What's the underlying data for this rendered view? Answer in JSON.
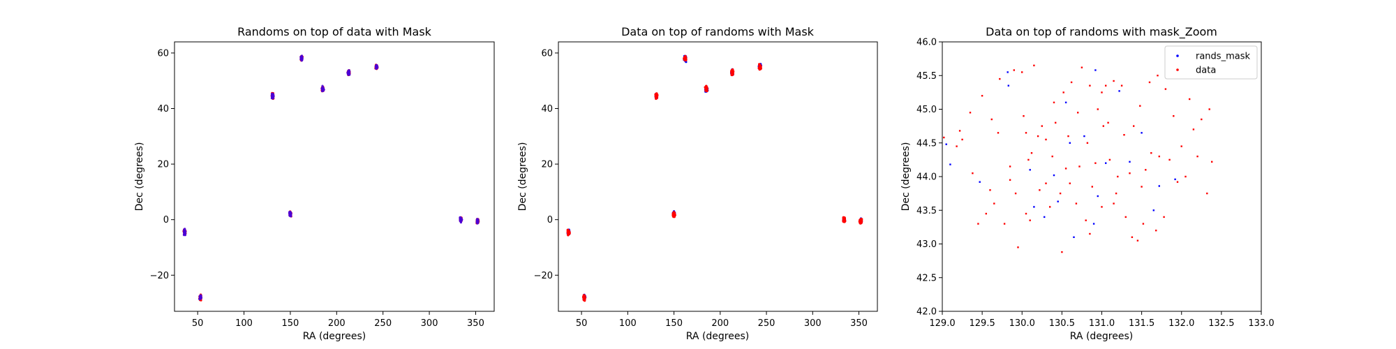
{
  "chart_data": [
    {
      "type": "scatter",
      "title": "Randoms on top of data with Mask",
      "xlabel": "RA (degrees)",
      "ylabel": "Dec (degrees)",
      "xlim": [
        25,
        370
      ],
      "ylim": [
        -33,
        64
      ],
      "xticks": [
        50,
        100,
        150,
        200,
        250,
        300,
        350
      ],
      "yticks": [
        -20,
        0,
        20,
        40,
        60
      ],
      "layers": [
        {
          "name": "data",
          "color": "#ff0000",
          "size": 1.6
        },
        {
          "name": "rands_mask",
          "color": "#4b00d6",
          "size": 1.6,
          "opacity": 0.85
        }
      ],
      "clusters": [
        {
          "ra": 36,
          "dec": -4.5
        },
        {
          "ra": 53,
          "dec": -28
        },
        {
          "ra": 131,
          "dec": 44.5
        },
        {
          "ra": 150,
          "dec": 2
        },
        {
          "ra": 162,
          "dec": 58
        },
        {
          "ra": 185,
          "dec": 47
        },
        {
          "ra": 213,
          "dec": 53
        },
        {
          "ra": 243,
          "dec": 55
        },
        {
          "ra": 334,
          "dec": 0
        },
        {
          "ra": 352,
          "dec": -0.5
        }
      ]
    },
    {
      "type": "scatter",
      "title": "Data on top of randoms with Mask",
      "xlabel": "RA (degrees)",
      "ylabel": "Dec (degrees)",
      "xlim": [
        25,
        370
      ],
      "ylim": [
        -33,
        64
      ],
      "xticks": [
        50,
        100,
        150,
        200,
        250,
        300,
        350
      ],
      "yticks": [
        -20,
        0,
        20,
        40,
        60
      ],
      "layers": [
        {
          "name": "rands_mask",
          "color": "#0000ff",
          "size": 1.6
        },
        {
          "name": "data",
          "color": "#ff0000",
          "size": 1.8
        }
      ],
      "clusters": [
        {
          "ra": 36,
          "dec": -4.5
        },
        {
          "ra": 53,
          "dec": -28
        },
        {
          "ra": 131,
          "dec": 44.5
        },
        {
          "ra": 150,
          "dec": 2
        },
        {
          "ra": 162,
          "dec": 58
        },
        {
          "ra": 185,
          "dec": 47
        },
        {
          "ra": 213,
          "dec": 53
        },
        {
          "ra": 243,
          "dec": 55
        },
        {
          "ra": 334,
          "dec": 0
        },
        {
          "ra": 352,
          "dec": -0.5
        }
      ]
    },
    {
      "type": "scatter",
      "title": "Data on top of randoms with mask_Zoom",
      "xlabel": "RA (degrees)",
      "ylabel": "Dec (degrees)",
      "xlim": [
        129.0,
        133.0
      ],
      "ylim": [
        42.0,
        46.0
      ],
      "xticks": [
        "129.0",
        "129.5",
        "130.0",
        "130.5",
        "131.0",
        "131.5",
        "132.0",
        "132.5",
        "133.0"
      ],
      "yticks": [
        "42.0",
        "42.5",
        "43.0",
        "43.5",
        "44.0",
        "44.5",
        "45.0",
        "45.5",
        "46.0"
      ],
      "legend": {
        "position": "upper right",
        "entries": [
          "rands_mask",
          "data"
        ]
      },
      "series": [
        {
          "name": "rands_mask",
          "color": "#0000ff",
          "points": [
            [
              129.05,
              44.48
            ],
            [
              129.1,
              44.18
            ],
            [
              129.47,
              43.92
            ],
            [
              129.82,
              45.55
            ],
            [
              129.83,
              45.35
            ],
            [
              130.1,
              44.1
            ],
            [
              130.15,
              43.55
            ],
            [
              130.28,
              43.4
            ],
            [
              130.4,
              44.02
            ],
            [
              130.45,
              43.63
            ],
            [
              130.55,
              45.1
            ],
            [
              130.65,
              43.1
            ],
            [
              130.78,
              44.6
            ],
            [
              130.9,
              43.3
            ],
            [
              130.92,
              45.58
            ],
            [
              130.95,
              43.71
            ],
            [
              131.22,
              45.27
            ],
            [
              131.35,
              44.22
            ],
            [
              131.5,
              44.65
            ],
            [
              131.65,
              43.5
            ],
            [
              131.72,
              43.86
            ],
            [
              131.92,
              43.96
            ],
            [
              130.6,
              44.5
            ],
            [
              131.05,
              44.2
            ]
          ]
        },
        {
          "name": "data",
          "color": "#ff0000",
          "points": [
            [
              129.02,
              44.58
            ],
            [
              129.18,
              44.45
            ],
            [
              129.22,
              44.68
            ],
            [
              129.25,
              44.55
            ],
            [
              129.35,
              44.95
            ],
            [
              129.38,
              44.05
            ],
            [
              129.45,
              43.3
            ],
            [
              129.5,
              45.2
            ],
            [
              129.55,
              43.45
            ],
            [
              129.6,
              43.8
            ],
            [
              129.62,
              44.85
            ],
            [
              129.7,
              44.65
            ],
            [
              129.72,
              45.45
            ],
            [
              129.78,
              43.3
            ],
            [
              129.85,
              43.95
            ],
            [
              129.9,
              45.58
            ],
            [
              129.92,
              43.75
            ],
            [
              129.95,
              42.95
            ],
            [
              130.0,
              45.55
            ],
            [
              130.02,
              44.9
            ],
            [
              130.05,
              43.45
            ],
            [
              130.08,
              44.25
            ],
            [
              130.12,
              44.35
            ],
            [
              130.15,
              45.65
            ],
            [
              130.2,
              44.6
            ],
            [
              130.22,
              43.8
            ],
            [
              130.25,
              44.75
            ],
            [
              130.3,
              44.55
            ],
            [
              130.35,
              43.55
            ],
            [
              130.38,
              44.3
            ],
            [
              130.42,
              44.8
            ],
            [
              130.48,
              43.75
            ],
            [
              130.5,
              42.88
            ],
            [
              130.52,
              45.25
            ],
            [
              130.55,
              44.12
            ],
            [
              130.58,
              44.6
            ],
            [
              130.6,
              43.9
            ],
            [
              130.62,
              45.4
            ],
            [
              130.68,
              43.6
            ],
            [
              130.7,
              44.95
            ],
            [
              130.72,
              44.15
            ],
            [
              130.75,
              45.62
            ],
            [
              130.8,
              43.35
            ],
            [
              130.82,
              44.5
            ],
            [
              130.85,
              45.35
            ],
            [
              130.88,
              43.85
            ],
            [
              130.92,
              44.2
            ],
            [
              130.95,
              45.0
            ],
            [
              131.0,
              43.55
            ],
            [
              131.02,
              44.75
            ],
            [
              131.05,
              45.35
            ],
            [
              131.08,
              44.8
            ],
            [
              131.1,
              44.25
            ],
            [
              131.15,
              45.42
            ],
            [
              131.18,
              43.75
            ],
            [
              131.2,
              44.0
            ],
            [
              131.25,
              45.35
            ],
            [
              131.3,
              43.4
            ],
            [
              131.35,
              44.05
            ],
            [
              131.38,
              43.1
            ],
            [
              131.4,
              44.75
            ],
            [
              131.45,
              43.05
            ],
            [
              131.48,
              45.05
            ],
            [
              131.52,
              43.3
            ],
            [
              131.55,
              44.1
            ],
            [
              131.6,
              45.4
            ],
            [
              131.62,
              44.35
            ],
            [
              131.68,
              43.2
            ],
            [
              131.72,
              44.3
            ],
            [
              131.78,
              43.4
            ],
            [
              131.8,
              45.3
            ],
            [
              131.85,
              44.25
            ],
            [
              131.9,
              44.9
            ],
            [
              131.95,
              43.92
            ],
            [
              132.0,
              44.45
            ],
            [
              132.05,
              44.0
            ],
            [
              132.1,
              45.15
            ],
            [
              132.15,
              44.7
            ],
            [
              132.2,
              44.3
            ],
            [
              132.25,
              44.85
            ],
            [
              132.32,
              43.75
            ],
            [
              132.35,
              45.0
            ],
            [
              132.38,
              44.22
            ],
            [
              130.1,
              43.35
            ],
            [
              130.4,
              45.1
            ],
            [
              129.65,
              43.6
            ],
            [
              130.3,
              43.9
            ],
            [
              131.0,
              45.25
            ],
            [
              131.28,
              44.62
            ],
            [
              130.85,
              43.15
            ],
            [
              131.7,
              45.5
            ],
            [
              131.15,
              43.6
            ],
            [
              130.05,
              44.65
            ],
            [
              129.85,
              44.15
            ],
            [
              131.5,
              43.85
            ]
          ]
        }
      ]
    }
  ]
}
